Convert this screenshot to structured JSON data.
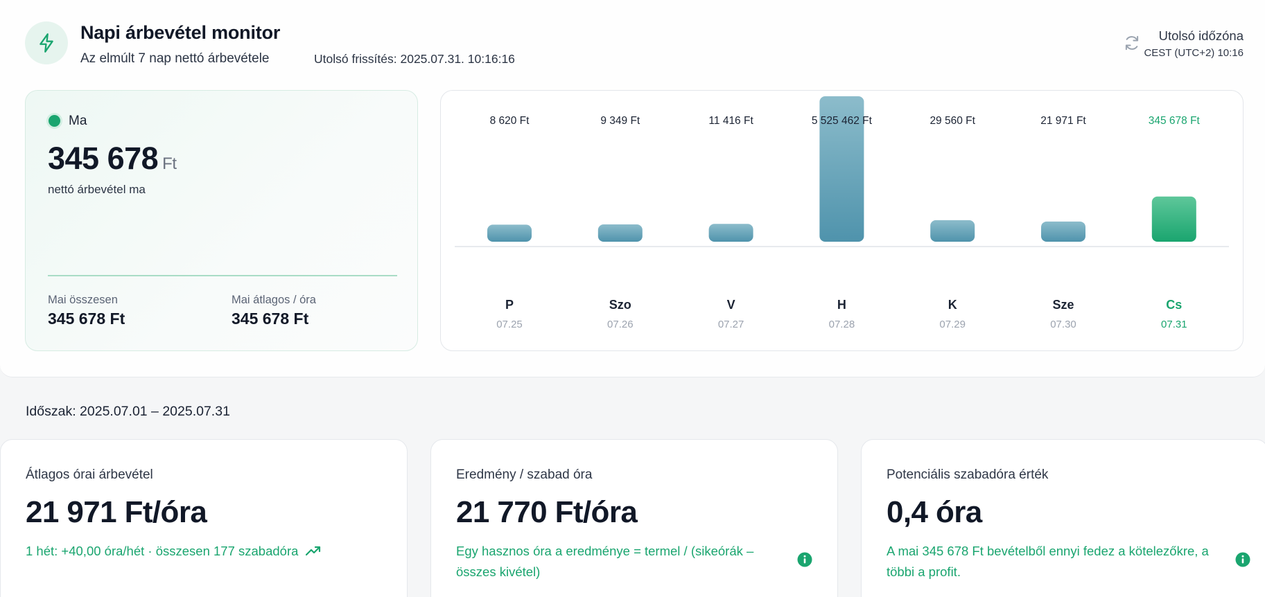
{
  "header": {
    "title": "Napi árbevétel monitor",
    "subtitle": "Az elmúlt 7 nap nettó árbevétele",
    "updated": "Utolsó frissítés: 2025.07.31. 10:16:16",
    "timezone_label": "Utolsó időzóna",
    "timezone_value": "CEST (UTC+2) 10:16",
    "logo_icon": "lightning-icon",
    "refresh_icon": "refresh-icon"
  },
  "today": {
    "label": "Ma",
    "value": "345 678",
    "unit": "Ft",
    "caption": "nettó árbevétel ma",
    "total_label": "Mai összesen",
    "total_value": "345 678 Ft",
    "avg_label": "Mai átlagos / óra",
    "avg_value": "345 678 Ft"
  },
  "colors": {
    "accent": "#1aa56f",
    "bar_top": "#8cbccb",
    "bar_bottom": "#4f93ac",
    "today_bar_top": "#5ec79a",
    "today_bar_bottom": "#1aa56f"
  },
  "chart_data": {
    "type": "bar",
    "categories": [
      "P",
      "Szo",
      "V",
      "H",
      "K",
      "Sze",
      "Cs"
    ],
    "dates": [
      "07.25",
      "07.26",
      "07.27",
      "07.28",
      "07.29",
      "07.30",
      "07.31"
    ],
    "value_labels": [
      "8 620 Ft",
      "9 349 Ft",
      "11 416 Ft",
      "5 525 462 Ft",
      "29 560 Ft",
      "21 971 Ft",
      "345 678 Ft"
    ],
    "values": [
      8620,
      9349,
      11416,
      5525462,
      29560,
      21971,
      345678
    ],
    "highlight_index": 6
  },
  "period": "Időszak: 2025.07.01 – 2025.07.31",
  "kpis": [
    {
      "title": "Átlagos órai árbevétel",
      "value": "21 971 Ft/óra",
      "note": "1 hét: +40,00 óra/hét · összesen 177 szabadóra",
      "icon": "trend-up-icon"
    },
    {
      "title": "Eredmény / szabad óra",
      "value": "21 770 Ft/óra",
      "note": "Egy hasznos óra a eredménye = termel / (sikeórák – összes kivétel)",
      "icon": "info-icon"
    },
    {
      "title": "Potenciális szabadóra érték",
      "value": "0,4 óra",
      "note": "A mai 345 678 Ft bevételből ennyi fedez a kötelezőkre, a többi a profit.",
      "icon": "info-icon"
    }
  ]
}
